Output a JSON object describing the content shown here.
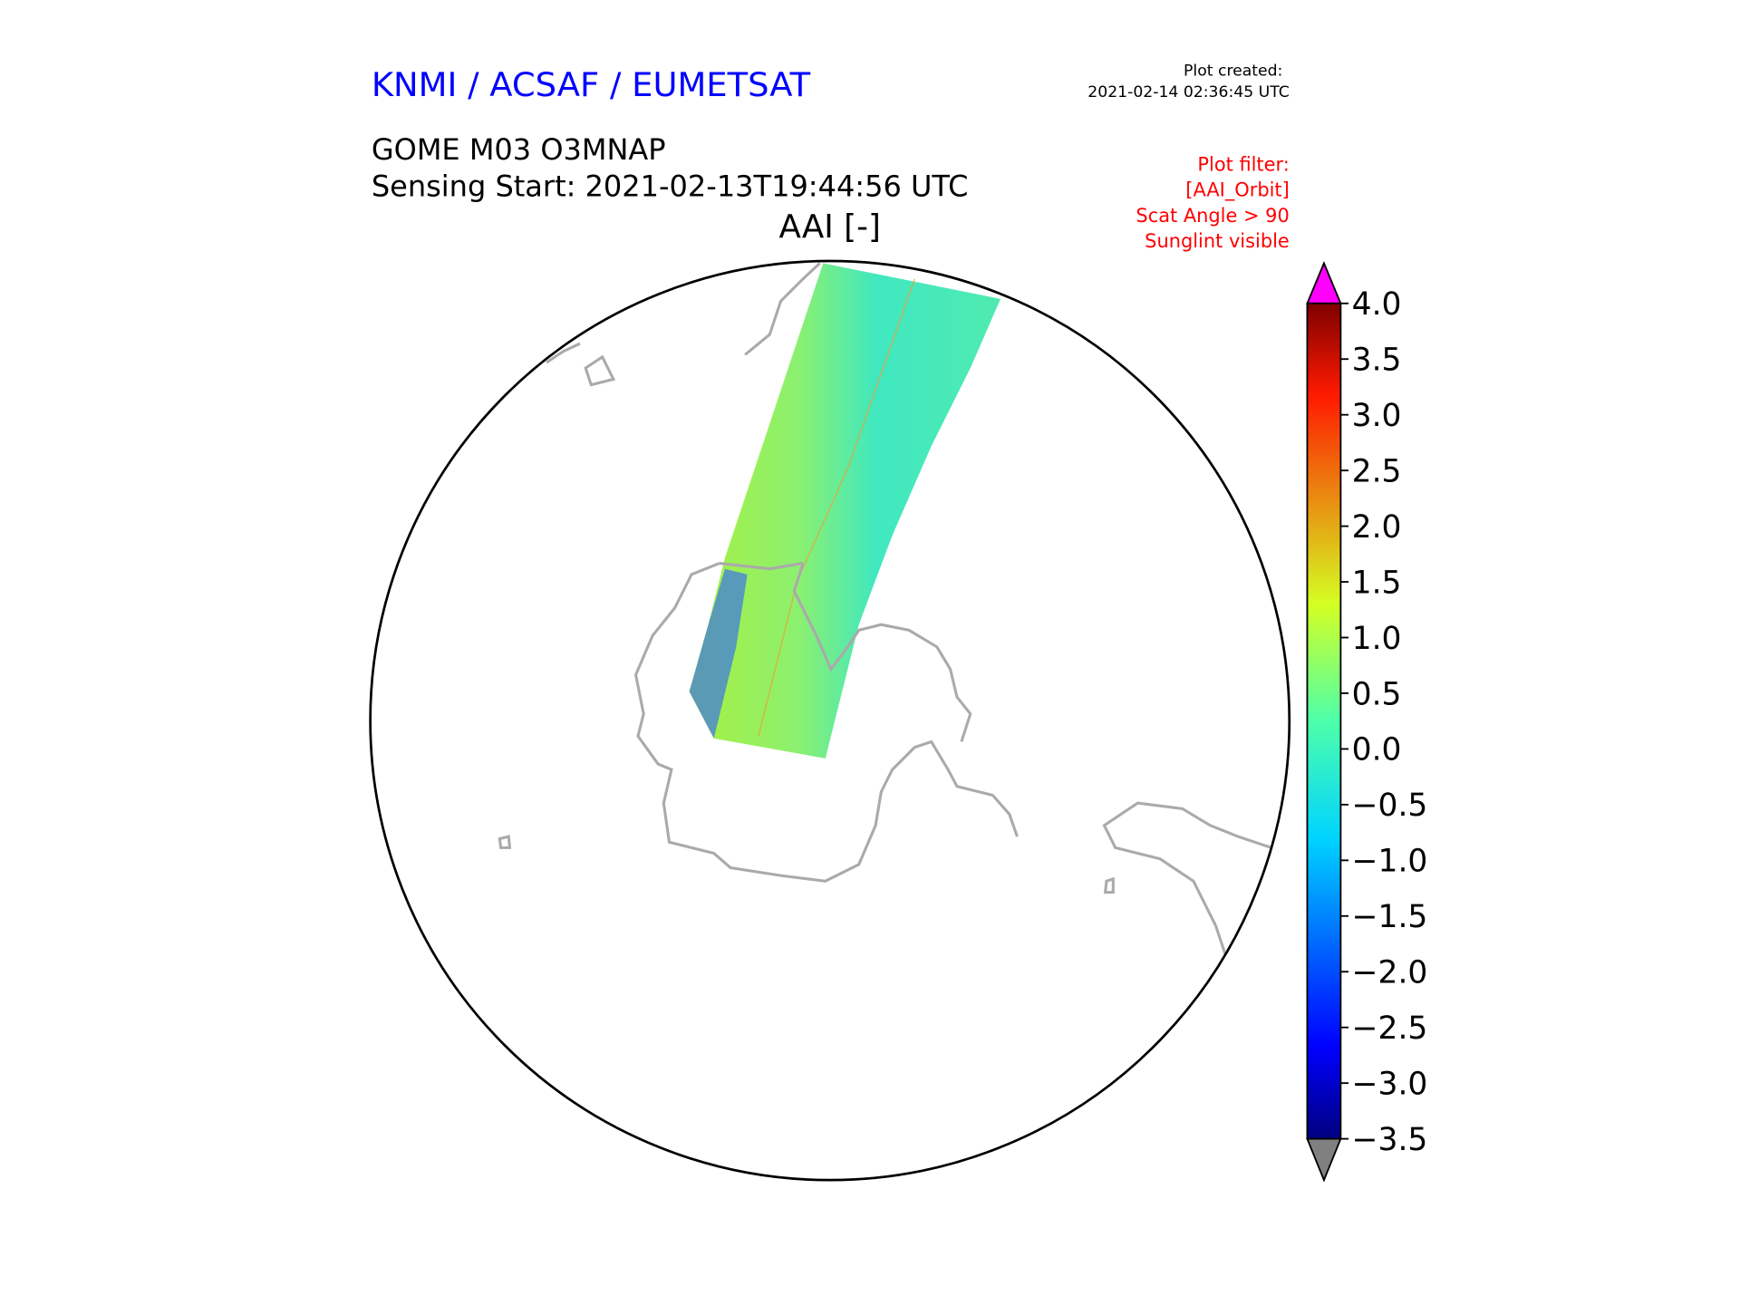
{
  "header": {
    "organization": "KNMI / ACSAF / EUMETSAT",
    "product": "GOME M03 O3MNAP",
    "sensing_start": "Sensing Start: 2021-02-13T19:44:56 UTC",
    "plot_created_label": "Plot created:",
    "plot_created_time": "2021-02-14 02:36:45 UTC"
  },
  "filter": {
    "lines": [
      "Plot filter:",
      "[AAI_Orbit]",
      "Scat Angle > 90",
      "Sunglint visible"
    ]
  },
  "colors": {
    "organization": "#0000ff",
    "filter": "#ff0000",
    "coastline": "#aaaaaa",
    "over_extend": "#ff00ff",
    "under_extend": "#808080"
  },
  "chart_data": {
    "type": "heatmap",
    "title": "AAI [-]",
    "projection": "south polar orthographic",
    "colormap": "jet",
    "colorbar": {
      "min": -3.5,
      "max": 4.0,
      "ticks": [
        -3.5,
        -3.0,
        -2.5,
        -2.0,
        -1.5,
        -1.0,
        -0.5,
        0.0,
        0.5,
        1.0,
        1.5,
        2.0,
        2.5,
        3.0,
        3.5,
        4.0
      ],
      "tick_labels": [
        "−3.5",
        "−3.0",
        "−2.5",
        "−2.0",
        "−1.5",
        "−1.0",
        "−0.5",
        "0.0",
        "0.5",
        "1.0",
        "1.5",
        "2.0",
        "2.5",
        "3.0",
        "3.5",
        "4.0"
      ],
      "extend": "both"
    }
  }
}
